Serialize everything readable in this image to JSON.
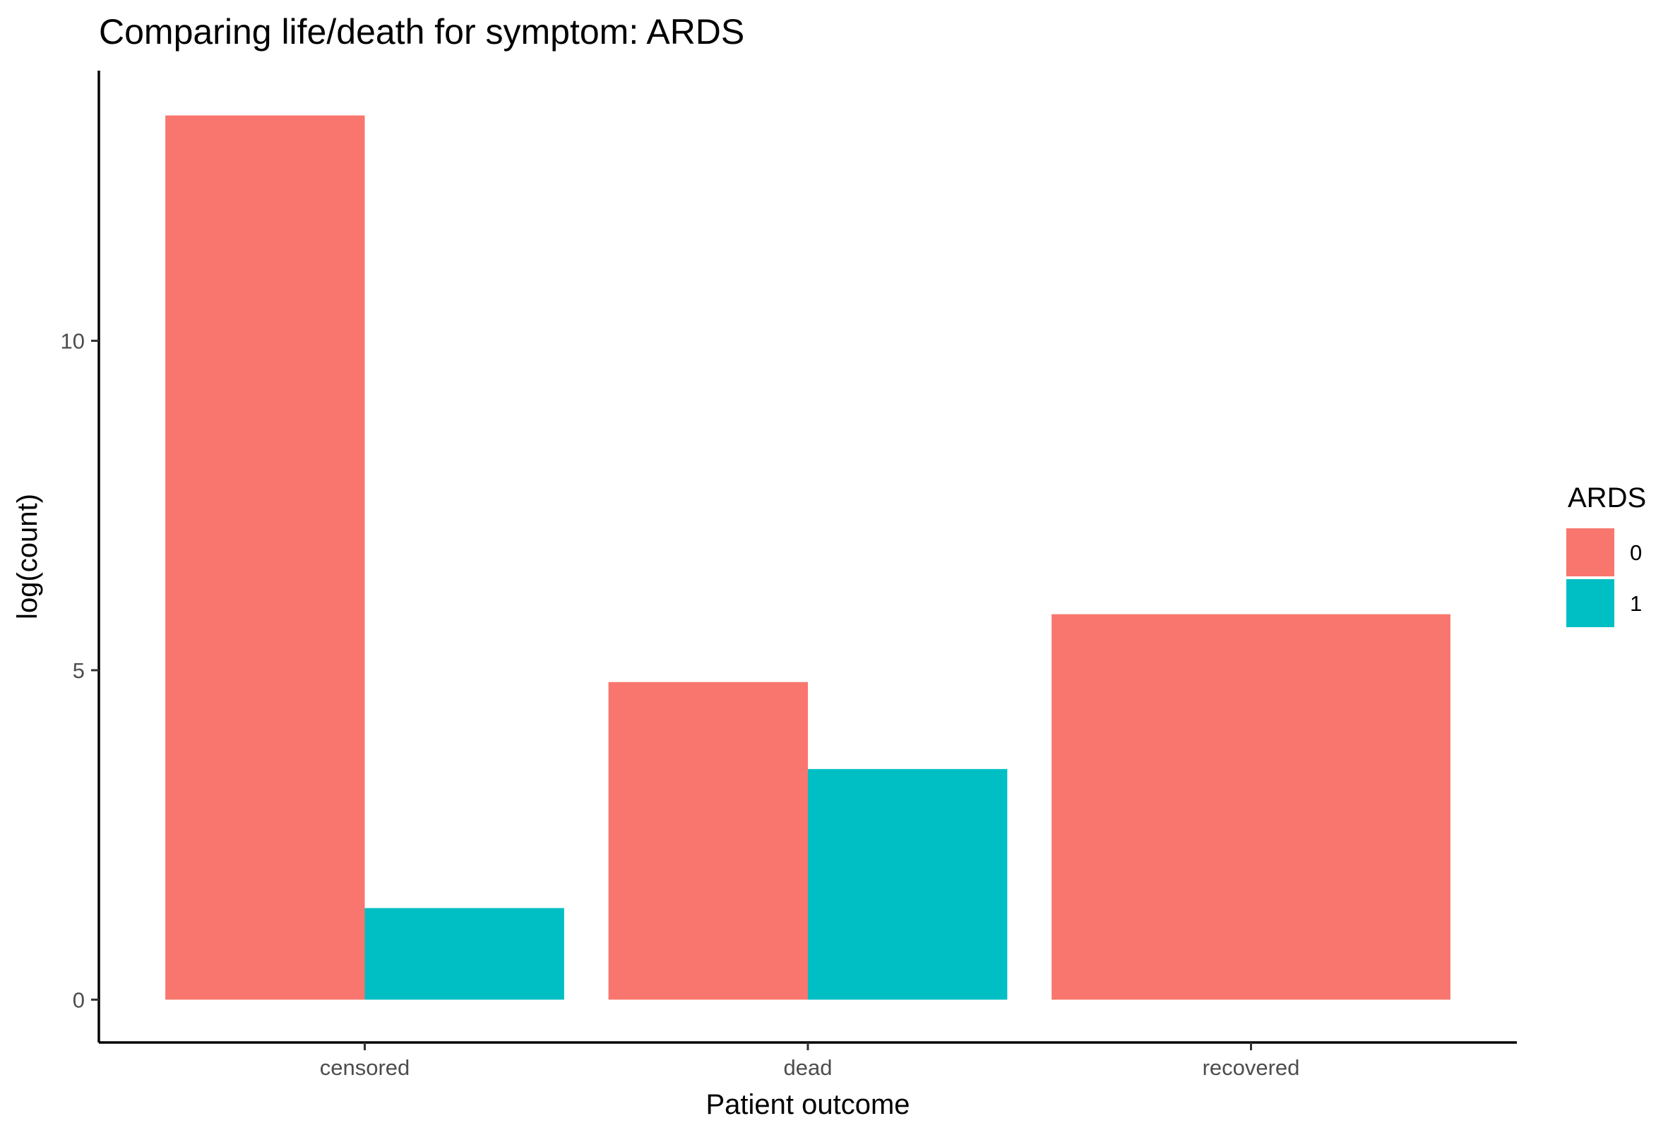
{
  "chart_data": {
    "type": "bar",
    "title": "Comparing life/death for symptom: ARDS",
    "xlabel": "Patient outcome",
    "ylabel": "log(count)",
    "categories": [
      "censored",
      "dead",
      "recovered"
    ],
    "series": [
      {
        "name": "0",
        "color": "#F8766D",
        "values": [
          13.42,
          4.82,
          5.85
        ]
      },
      {
        "name": "1",
        "color": "#00BFC4",
        "values": [
          1.39,
          3.5,
          null
        ]
      }
    ],
    "yticks": [
      0,
      5,
      10
    ],
    "ylim": [
      -0.65,
      14.1
    ],
    "legend": {
      "title": "ARDS",
      "placement": "right"
    },
    "grid": false
  }
}
